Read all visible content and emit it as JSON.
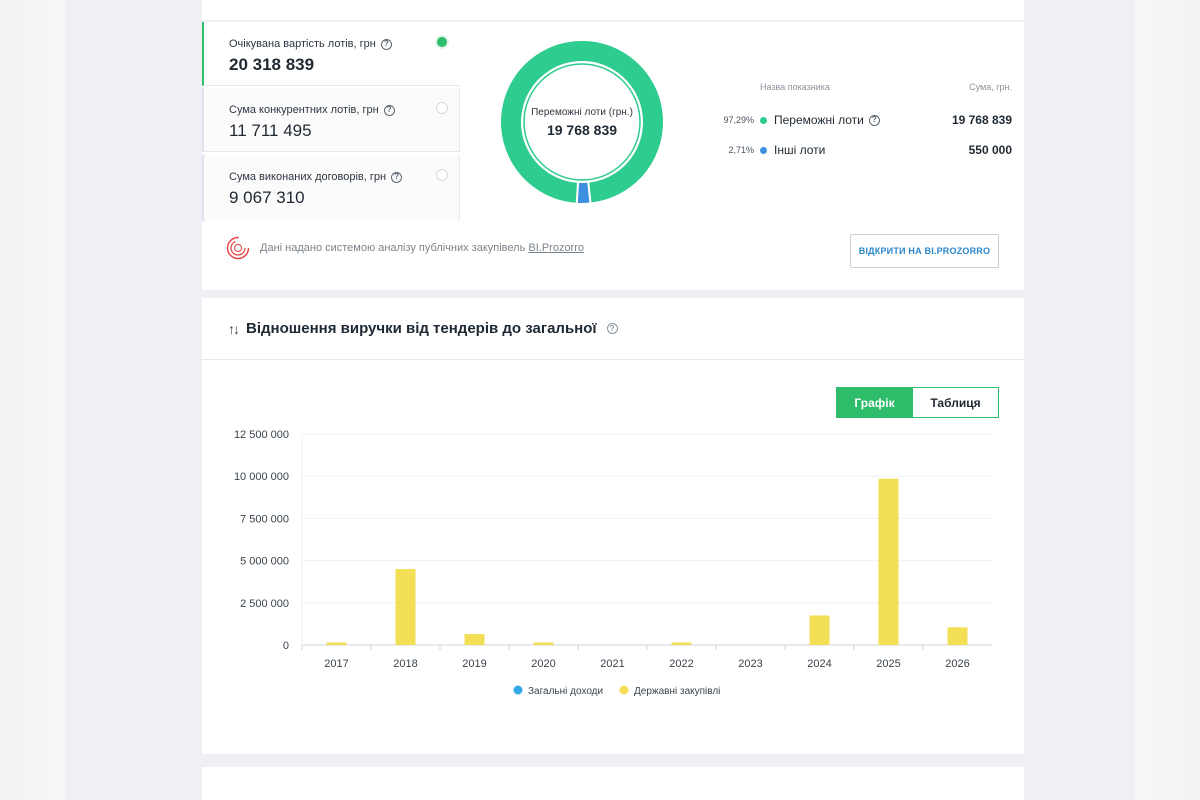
{
  "lots": {
    "metrics": [
      {
        "label": "Очікувана вартість лотів, грн",
        "value": "20 318 839",
        "selected": true
      },
      {
        "label": "Сума конкурентних лотів, грн",
        "value": "11 711 495",
        "selected": false
      },
      {
        "label": "Сума виконаних договорів, грн",
        "value": "9 067 310",
        "selected": false
      }
    ],
    "donut": {
      "center_label": "Переможні лоти (грн.)",
      "center_value": "19 768 839",
      "segments": [
        {
          "name": "Переможні лоти",
          "percent": 97.29,
          "color": "#2ecc8e"
        },
        {
          "name": "Інші лоти",
          "percent": 2.71,
          "color": "#3d8fe0"
        }
      ]
    },
    "legend": {
      "header_name": "Назва показника",
      "header_sum": "Сума, грн.",
      "rows": [
        {
          "pct": "97,29%",
          "name": "Переможні лоти",
          "sum": "19 768 839",
          "color": "#2ecc8e",
          "help": true
        },
        {
          "pct": "2,71%",
          "name": "Інші лоти",
          "sum": "550 000",
          "color": "#3d8fe0",
          "help": false
        }
      ]
    },
    "source": {
      "text": "Дані надано системою аналізу публічних закупівель",
      "link": "BI.Prozorro"
    },
    "open_button": "ВІДКРИТИ НА BI.PROZORRO"
  },
  "revenue": {
    "icon": "sort-arrows-icon",
    "title": "Відношення виручки від тендерів до загальної",
    "toggle": {
      "chart": "Графік",
      "table": "Таблиця",
      "active": "chart"
    }
  },
  "chart_data": {
    "type": "bar",
    "categories": [
      "2017",
      "2018",
      "2019",
      "2020",
      "2021",
      "2022",
      "2023",
      "2024",
      "2025",
      "2026"
    ],
    "series": [
      {
        "name": "Загальні доходи",
        "color": "#36a8e8",
        "values": [
          0,
          0,
          0,
          0,
          0,
          0,
          0,
          0,
          0,
          0
        ]
      },
      {
        "name": "Державні закупівлі",
        "color": "#f2df55",
        "values": [
          150000,
          4500000,
          650000,
          150000,
          0,
          150000,
          0,
          1750000,
          9850000,
          1050000
        ]
      }
    ],
    "ytick_labels": [
      "0",
      "2 500 000",
      "5 000 000",
      "7 500 000",
      "10 000 000",
      "12 500 000"
    ],
    "ylim": [
      0,
      12500000
    ],
    "grid": true,
    "legend_position": "bottom"
  },
  "colors": {
    "accent": "#2ebd6b",
    "link": "#2a86c8"
  }
}
